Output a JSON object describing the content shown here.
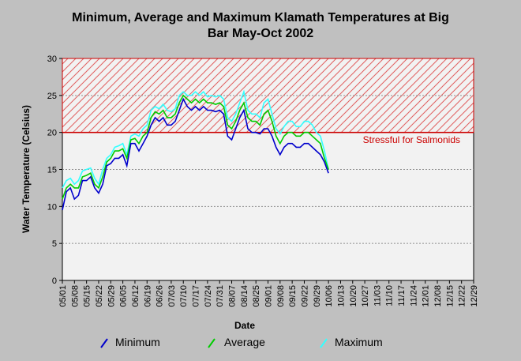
{
  "chart_data": {
    "type": "line",
    "title": [
      "Minimum, Average and Maximum Klamath Temperatures at Big",
      "Bar May-Oct 2002"
    ],
    "xlabel": "Date",
    "ylabel": "Water Temperature (Celsius)",
    "ylim": [
      0,
      30
    ],
    "yticks": [
      0,
      5,
      10,
      15,
      20,
      25,
      30
    ],
    "xticks": [
      "05/01",
      "05/08",
      "05/15",
      "05/22",
      "05/29",
      "06/05",
      "06/12",
      "06/19",
      "06/26",
      "07/03",
      "07/10",
      "07/17",
      "07/24",
      "07/31",
      "08/07",
      "08/14",
      "08/25",
      "09/01",
      "09/08",
      "09/15",
      "09/22",
      "09/29",
      "10/06",
      "10/13",
      "10/20",
      "10/27",
      "11/03",
      "11/10",
      "11/17",
      "11/24",
      "12/01",
      "12/08",
      "12/15",
      "12/22",
      "12/29"
    ],
    "grid": "horizontal dashed",
    "legend_position": "bottom",
    "threshold": {
      "from": 20,
      "to": 30,
      "label": "Stressful for Salmonids",
      "color": "#cc0000"
    },
    "series": [
      {
        "name": "Minimum",
        "color": "#0000cc",
        "values": [
          9.5,
          12,
          12.5,
          11,
          11.5,
          13.5,
          13.5,
          14,
          12.5,
          11.8,
          13,
          15.5,
          15.8,
          16.5,
          16.5,
          17,
          15.5,
          18.5,
          18.5,
          17.5,
          18.5,
          19.5,
          21,
          22,
          21.5,
          22,
          21,
          21,
          21.5,
          23,
          24.5,
          23.5,
          23,
          23.5,
          23,
          23.5,
          23,
          23,
          22.8,
          23,
          22.5,
          19.5,
          19,
          20.5,
          22,
          23,
          20.5,
          20,
          20,
          19.8,
          20.5,
          20.5,
          19.5,
          18,
          17,
          18,
          18.5,
          18.5,
          18,
          18,
          18.5,
          18.5,
          18,
          17.5,
          17,
          16,
          14.5
        ]
      },
      {
        "name": "Average",
        "color": "#00cc00",
        "values": [
          11,
          12.5,
          13,
          12.5,
          12.5,
          14,
          14.2,
          14.5,
          13,
          12.5,
          14,
          16,
          16.5,
          17.5,
          17.5,
          17.8,
          16.5,
          19,
          19.2,
          18.5,
          19.5,
          20,
          22,
          22.8,
          22.5,
          23,
          22,
          22,
          22.5,
          24,
          25,
          24.5,
          24,
          24.5,
          24,
          24.5,
          24,
          24,
          23.8,
          24,
          23.5,
          21,
          20.5,
          21.5,
          23,
          24,
          22,
          21.5,
          21.5,
          21,
          22.5,
          23,
          21.5,
          19.5,
          18.5,
          19.5,
          20,
          20,
          19.5,
          19.5,
          20,
          20,
          19.5,
          19,
          18.5,
          16.5,
          15
        ]
      },
      {
        "name": "Maximum",
        "color": "#33ffff",
        "values": [
          12.5,
          13.5,
          13.8,
          13,
          13.5,
          14.8,
          15,
          15.2,
          13.8,
          13,
          15,
          16.5,
          17,
          18,
          18.2,
          18.5,
          17,
          19.5,
          19.8,
          19.5,
          20.5,
          21,
          23,
          23.5,
          23.2,
          23.8,
          23,
          22.8,
          23.2,
          25,
          25.5,
          25,
          25,
          25.5,
          25,
          25.5,
          24.8,
          25,
          24.8,
          25,
          24.5,
          22,
          21.5,
          22.5,
          24,
          25.5,
          23,
          22.5,
          22.5,
          22,
          24,
          24.5,
          22.5,
          20.5,
          19.8,
          20.8,
          21.5,
          21.5,
          20.8,
          20.8,
          21.5,
          21.5,
          21,
          20,
          19.5,
          17.5,
          15
        ]
      }
    ]
  }
}
